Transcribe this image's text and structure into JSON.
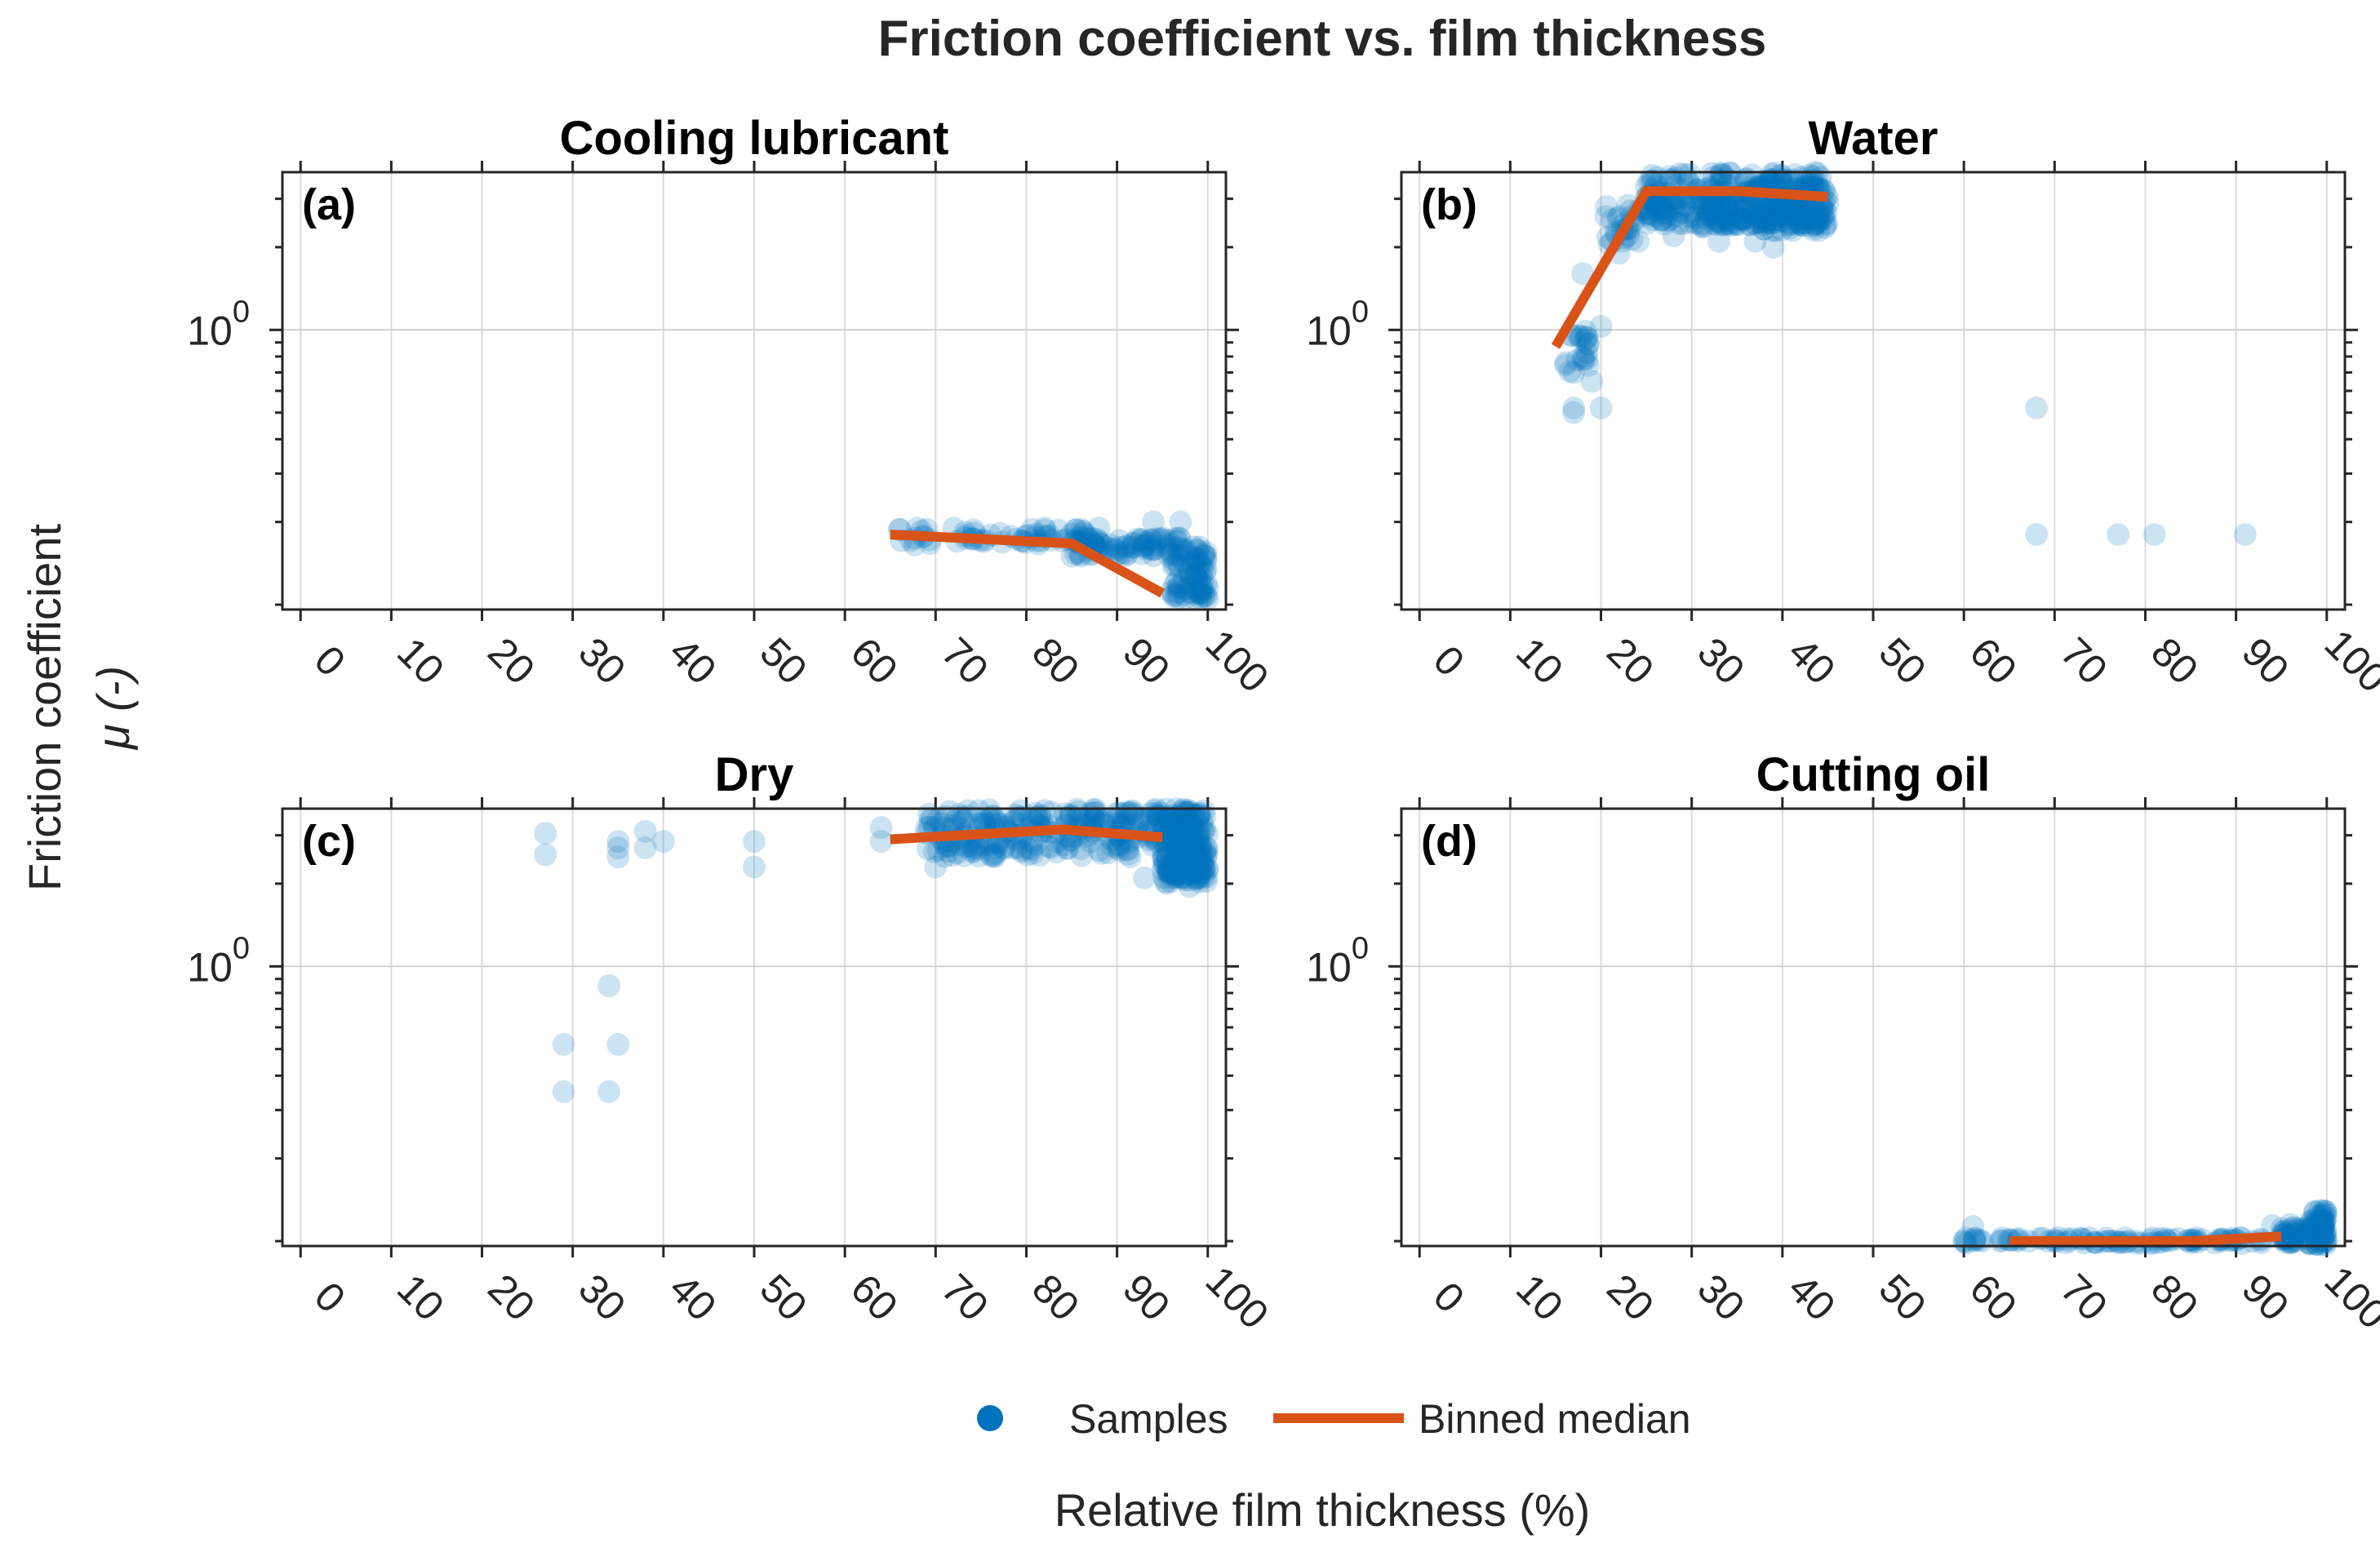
{
  "chart_data": {
    "type": "scatter",
    "title": "Friction coefficient vs. film thickness",
    "xlabel": "Relative film thickness (%)",
    "ylabel": "Friction coefficient",
    "ylabel2": "μ (-)",
    "xlim": [
      -2,
      102
    ],
    "ylim": [
      0.096,
      3.75
    ],
    "yscale": "log",
    "xticks": [
      "0",
      "10",
      "20",
      "30",
      "40",
      "50",
      "60",
      "70",
      "80",
      "90",
      "100"
    ],
    "ytick_base": "10",
    "ytick_exp": "0",
    "grid": true,
    "legend": {
      "placement": "bottom-center",
      "entries": [
        "Samples",
        "Binned median"
      ]
    },
    "colors": {
      "samples": "#0072BD",
      "median": "#D95319"
    },
    "panels": [
      {
        "title": "Cooling lubricant",
        "label": "(a)",
        "median": [
          [
            65,
            0.18
          ],
          [
            85,
            0.167
          ],
          [
            95,
            0.11
          ]
        ],
        "points": [
          [
            68,
            0.19
          ],
          [
            72,
            0.19
          ],
          [
            82,
            0.19
          ],
          [
            88,
            0.19
          ],
          [
            94,
            0.2
          ],
          [
            97,
            0.2
          ],
          [
            98,
            0.13
          ],
          [
            99,
            0.11
          ],
          [
            100,
            0.105
          ]
        ],
        "clusters": [
          {
            "x": [
              66,
              88
            ],
            "y": [
              0.165,
              0.19
            ],
            "n": 60
          },
          {
            "x": [
              85,
              97
            ],
            "y": [
              0.15,
              0.175
            ],
            "n": 80
          },
          {
            "x": [
              96,
              100
            ],
            "y": [
              0.105,
              0.165
            ],
            "n": 80
          }
        ]
      },
      {
        "title": "Water",
        "label": "(b)",
        "median": [
          [
            15,
            0.87
          ],
          [
            25,
            3.2
          ],
          [
            35,
            3.2
          ],
          [
            45,
            3.05
          ]
        ],
        "points": [
          [
            17,
            0.5
          ],
          [
            17,
            0.52
          ],
          [
            20,
            1.03
          ],
          [
            20,
            0.52
          ],
          [
            68,
            0.52
          ],
          [
            68,
            0.18
          ],
          [
            77,
            0.18
          ],
          [
            81,
            0.18
          ],
          [
            91,
            0.18
          ],
          [
            18,
            1.6
          ],
          [
            18,
            0.8
          ],
          [
            17,
            0.7
          ],
          [
            19,
            0.65
          ],
          [
            22,
            1.9
          ],
          [
            28,
            2.2
          ],
          [
            33,
            2.1
          ],
          [
            37,
            2.1
          ],
          [
            39,
            2.0
          ],
          [
            44,
            2.3
          ]
        ],
        "clusters": [
          {
            "x": [
              16,
              19
            ],
            "y": [
              0.7,
              1.0
            ],
            "n": 20
          },
          {
            "x": [
              20,
              26
            ],
            "y": [
              2.0,
              3.0
            ],
            "n": 30
          },
          {
            "x": [
              25,
              45
            ],
            "y": [
              2.4,
              3.75
            ],
            "n": 300
          },
          {
            "x": [
              31,
              45
            ],
            "y": [
              2.3,
              2.9
            ],
            "n": 120
          }
        ]
      },
      {
        "title": "Dry",
        "label": "(c)",
        "median": [
          [
            65,
            2.9
          ],
          [
            84,
            3.15
          ],
          [
            95,
            2.95
          ]
        ],
        "points": [
          [
            27,
            3.05
          ],
          [
            27,
            2.55
          ],
          [
            29,
            0.52
          ],
          [
            29,
            0.35
          ],
          [
            34,
            0.85
          ],
          [
            34,
            0.35
          ],
          [
            35,
            0.52
          ],
          [
            35,
            2.85
          ],
          [
            35,
            2.7
          ],
          [
            35,
            2.5
          ],
          [
            38,
            3.1
          ],
          [
            38,
            2.7
          ],
          [
            40,
            2.85
          ],
          [
            50,
            2.85
          ],
          [
            50,
            2.3
          ],
          [
            64,
            3.2
          ],
          [
            64,
            2.85
          ],
          [
            70,
            2.3
          ],
          [
            93,
            2.1
          ],
          [
            98,
            1.95
          ]
        ],
        "clusters": [
          {
            "x": [
              69,
              95
            ],
            "y": [
              2.5,
              3.75
            ],
            "n": 250
          },
          {
            "x": [
              95,
              100
            ],
            "y": [
              2.0,
              3.75
            ],
            "n": 220
          }
        ]
      },
      {
        "title": "Cutting oil",
        "label": "(d)",
        "median": [
          [
            65,
            0.1
          ],
          [
            85,
            0.1
          ],
          [
            95,
            0.104
          ]
        ],
        "points": [
          [
            61,
            0.113
          ],
          [
            60,
            0.1
          ],
          [
            62,
            0.1
          ],
          [
            64,
            0.1
          ],
          [
            66,
            0.1
          ],
          [
            94,
            0.114
          ],
          [
            96,
            0.115
          ]
        ],
        "clusters": [
          {
            "x": [
              60,
              93
            ],
            "y": [
              0.098,
              0.103
            ],
            "n": 90
          },
          {
            "x": [
              95,
              98
            ],
            "y": [
              0.098,
              0.112
            ],
            "n": 40
          },
          {
            "x": [
              98,
              100
            ],
            "y": [
              0.097,
              0.13
            ],
            "n": 70
          }
        ]
      }
    ]
  }
}
